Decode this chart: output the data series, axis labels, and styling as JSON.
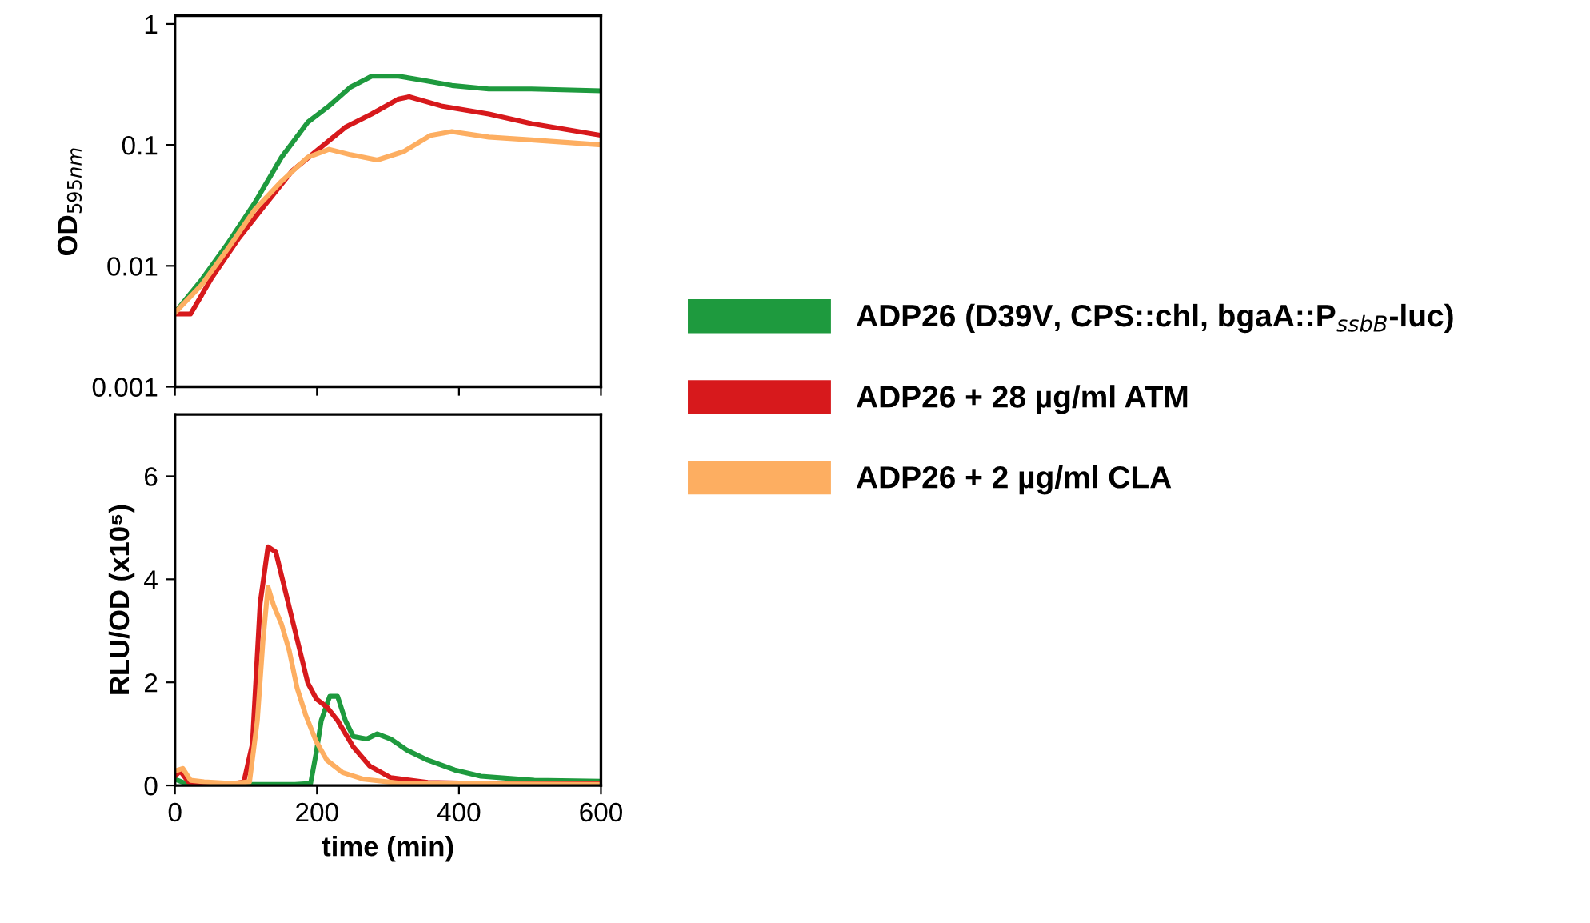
{
  "chart_data": [
    {
      "type": "line",
      "ylabel": "OD$_{595nm}$",
      "log": "y",
      "xlim": [
        0,
        600
      ],
      "xticks": [
        {
          "value": 0,
          "label": null
        },
        {
          "value": 200,
          "label": null
        },
        {
          "value": 400,
          "label": null
        },
        {
          "value": 600,
          "label": null
        }
      ],
      "ylim": [
        0.001,
        1.17
      ],
      "yticks": [
        0.001,
        0.01,
        0.1,
        1
      ],
      "tick_labels": "y",
      "grid": false,
      "legend": "right",
      "marker": "none",
      "line_style": "solid",
      "series": [
        {
          "name": "ADP26 (D39V, CPS::chl, bgaA::P$_{ssbB}$-luc)",
          "color": "#1e9a3e",
          "x": [
            0,
            37,
            75,
            112,
            150,
            187,
            217,
            247,
            277,
            315,
            352,
            390,
            442,
            502,
            600
          ],
          "values": [
            0.0041,
            0.0076,
            0.0155,
            0.033,
            0.079,
            0.154,
            0.21,
            0.3,
            0.37,
            0.37,
            0.34,
            0.31,
            0.29,
            0.29,
            0.28
          ]
        },
        {
          "name": "ADP26 + 28 µg/ml ATM",
          "color": "#d7191c",
          "x": [
            0,
            22,
            52,
            90,
            127,
            165,
            202,
            240,
            277,
            315,
            330,
            375,
            442,
            502,
            600
          ],
          "values": [
            0.004,
            0.004,
            0.008,
            0.017,
            0.032,
            0.061,
            0.092,
            0.14,
            0.18,
            0.24,
            0.25,
            0.21,
            0.18,
            0.15,
            0.12
          ]
        },
        {
          "name": "ADP26 + 2 µg/ml CLA",
          "color": "#fdae61",
          "x": [
            0,
            37,
            75,
            112,
            150,
            187,
            217,
            247,
            285,
            322,
            360,
            390,
            442,
            502,
            600
          ],
          "values": [
            0.0041,
            0.0069,
            0.014,
            0.029,
            0.05,
            0.079,
            0.092,
            0.083,
            0.075,
            0.088,
            0.12,
            0.129,
            0.116,
            0.11,
            0.1
          ]
        }
      ]
    },
    {
      "type": "line",
      "xlabel": "time (min)",
      "ylabel": "RLU/OD (x10⁵)",
      "xlim": [
        0,
        600
      ],
      "xticks": [
        0,
        200,
        400,
        600
      ],
      "ylim": [
        0,
        7.2
      ],
      "yticks": [
        0,
        2,
        4,
        6
      ],
      "grid": false,
      "marker": "none",
      "line_style": "solid",
      "series": [
        {
          "color": "#1e9a3e",
          "x": [
            0,
            19,
            169,
            191,
            199,
            206,
            218,
            229,
            240,
            251,
            270,
            285,
            304,
            326,
            356,
            394,
            431,
            506,
            600
          ],
          "values": [
            0.12,
            0.02,
            0.02,
            0.04,
            0.64,
            1.26,
            1.73,
            1.73,
            1.26,
            0.95,
            0.9,
            1.0,
            0.9,
            0.69,
            0.49,
            0.3,
            0.18,
            0.1,
            0.08
          ]
        },
        {
          "color": "#d7191c",
          "x": [
            0,
            7.5,
            19,
            41,
            79,
            97,
            109,
            120,
            131,
            142,
            154,
            165,
            176,
            187,
            199,
            214,
            229,
            251,
            274,
            304,
            356,
            431,
            600
          ],
          "values": [
            0.18,
            0.28,
            0.07,
            0.04,
            0.02,
            0.07,
            0.8,
            3.54,
            4.63,
            4.53,
            3.85,
            3.23,
            2.61,
            1.99,
            1.68,
            1.52,
            1.26,
            0.75,
            0.38,
            0.15,
            0.06,
            0.04,
            0.04
          ]
        },
        {
          "color": "#fdae61",
          "x": [
            0,
            11,
            22,
            41,
            79,
            105,
            116,
            124,
            131,
            139,
            150,
            161,
            172,
            184,
            199,
            214,
            236,
            266,
            319,
            600
          ],
          "values": [
            0.28,
            0.33,
            0.1,
            0.07,
            0.04,
            0.07,
            1.26,
            2.82,
            3.85,
            3.49,
            3.13,
            2.61,
            1.89,
            1.37,
            0.85,
            0.49,
            0.25,
            0.12,
            0.04,
            0.02
          ]
        }
      ]
    }
  ]
}
